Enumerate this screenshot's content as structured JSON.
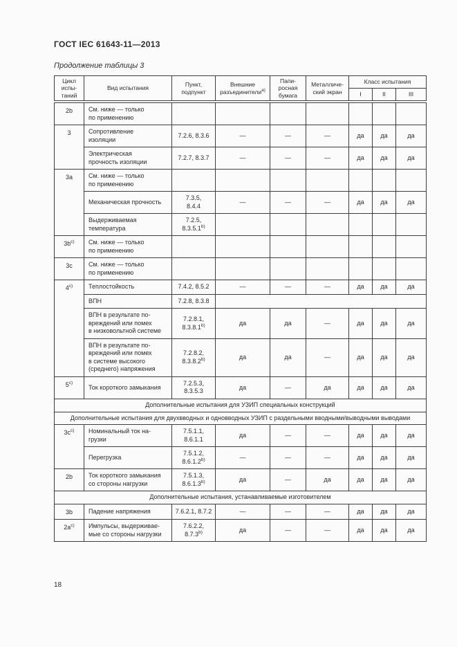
{
  "page": {
    "header_title": "ГОСТ IEC 61643-11—2013",
    "table_caption": "Продолжение таблицы 3",
    "page_number": "18"
  },
  "table": {
    "columns": {
      "cycle": "Цикл\nиспы-\nтаний",
      "type": "Вид испытания",
      "clause": "Пункт,\nподпункт",
      "ext": "Внешние\nразъединители^{a)}",
      "paper": "Папи-\nросная\nбумага",
      "screen": "Металличе-\nский экран",
      "class_group": "Класс испытания",
      "class_cols": [
        "I",
        "II",
        "III"
      ]
    },
    "rows": [
      {
        "kind": "data",
        "cycle": "2b",
        "rowspan": 1,
        "type": "См. ниже — только\nпо применению",
        "clause": "",
        "cells": [
          "",
          "",
          "",
          "",
          "",
          ""
        ]
      },
      {
        "kind": "data",
        "cycle": "3",
        "rowspan": 2,
        "type": "Сопротивление\nизоляции",
        "clause": "7.2.6, 8.3.6",
        "cells": [
          "—",
          "—",
          "—",
          "да",
          "да",
          "да"
        ]
      },
      {
        "kind": "data",
        "cycle": null,
        "type": "Электрическая\nпрочность изоляции",
        "clause": "7.2.7, 8.3.7",
        "cells": [
          "—",
          "—",
          "—",
          "да",
          "да",
          "да"
        ]
      },
      {
        "kind": "data",
        "cycle": "3a",
        "rowspan": 3,
        "type": "См. ниже — только\nпо применению",
        "clause": "",
        "cells": [
          "",
          "",
          "",
          "",
          "",
          ""
        ]
      },
      {
        "kind": "data",
        "cycle": null,
        "type": "Механическая прочность",
        "clause": "7.3.5,\n8.4.4",
        "cells": [
          "—",
          "—",
          "—",
          "да",
          "да",
          "да"
        ]
      },
      {
        "kind": "data",
        "cycle": null,
        "type": "Выдерживаемая\nтемпература",
        "clause": "7.2.5,\n8.3.5.1^{b)}",
        "cells": [
          "",
          "",
          "",
          "",
          "",
          ""
        ]
      },
      {
        "kind": "data",
        "cycle": "3b^{c)}",
        "rowspan": 1,
        "type": "См. ниже — только\nпо применению",
        "clause": "",
        "cells": [
          "",
          "",
          "",
          "",
          "",
          ""
        ]
      },
      {
        "kind": "data",
        "cycle": "3c",
        "rowspan": 1,
        "type": "См. ниже — только\nпо применению",
        "clause": "",
        "cells": [
          "",
          "",
          "",
          "",
          "",
          ""
        ]
      },
      {
        "kind": "data",
        "cycle": "4^{c)}",
        "rowspan": 4,
        "type": "Теплостойкость",
        "clause": "7.4.2, 8.5.2",
        "cells": [
          "—",
          "—",
          "—",
          "да",
          "да",
          "да"
        ]
      },
      {
        "kind": "data",
        "cycle": null,
        "type": "ВПН",
        "clause": "7.2.8, 8.3.8",
        "merged": true
      },
      {
        "kind": "data",
        "cycle": null,
        "type": "ВПН в результате по-\nвреждений или помех\nв низковольтной системе",
        "clause": "7.2.8.1,\n8.3.8.1^{b)}",
        "cells": [
          "да",
          "да",
          "—",
          "да",
          "да",
          "да"
        ]
      },
      {
        "kind": "data",
        "cycle": null,
        "type": "ВПН в результате по-\nвреждений или помех\nв системе высокого\n(среднего) напряжения",
        "clause": "7.2.8.2,\n8.3.8.2^{b)}",
        "cells": [
          "да",
          "да",
          "—",
          "да",
          "да",
          "да"
        ]
      },
      {
        "kind": "data",
        "cycle": "5^{c)}",
        "rowspan": 1,
        "type": "Ток короткого замыкания",
        "clause": "7.2.5.3,\n8.3.5.3",
        "cells": [
          "да",
          "—",
          "да",
          "да",
          "да",
          "да"
        ]
      },
      {
        "kind": "section",
        "text": "Дополнительные испытания для УЗИП специальных конструкций"
      },
      {
        "kind": "section",
        "text": "Дополнительные испытания для двухвводных и одновводных УЗИП с раздельными вводными/выводными выводами"
      },
      {
        "kind": "data",
        "cycle": "3c^{c)}",
        "rowspan": 2,
        "type": "Номинальный ток на-\nгрузки",
        "clause": "7.5.1.1,\n8.6.1.1",
        "cells": [
          "да",
          "—",
          "—",
          "да",
          "да",
          "да"
        ]
      },
      {
        "kind": "data",
        "cycle": null,
        "type": "Перегрузка",
        "clause": "7.5.1.2,\n8.6.1.2^{b)}",
        "cells": [
          "—",
          "—",
          "—",
          "да",
          "да",
          "да"
        ]
      },
      {
        "kind": "data",
        "cycle": "2b",
        "rowspan": 1,
        "type": "Ток короткого замыкания\nсо стороны нагрузки",
        "clause": "7.5.1.3,\n8.6.1.3^{b)}",
        "cells": [
          "да",
          "—",
          "да",
          "да",
          "да",
          "да"
        ]
      },
      {
        "kind": "section",
        "text": "Дополнительные испытания, устанавливаемые изготовителем"
      },
      {
        "kind": "data",
        "cycle": "3b",
        "rowspan": 1,
        "type": "Падение напряжения",
        "clause": "7.6.2.1, 8.7.2",
        "cells": [
          "—",
          "—",
          "—",
          "да",
          "да",
          "да"
        ]
      },
      {
        "kind": "data",
        "cycle": "2a^{c)}",
        "rowspan": 1,
        "type": "Импульсы, выдерживае-\nмые со стороны нагрузки",
        "clause": "7.6.2.2,\n8.7.3^{b)}",
        "cells": [
          "да",
          "—",
          "—",
          "да",
          "да",
          "да"
        ]
      }
    ]
  }
}
